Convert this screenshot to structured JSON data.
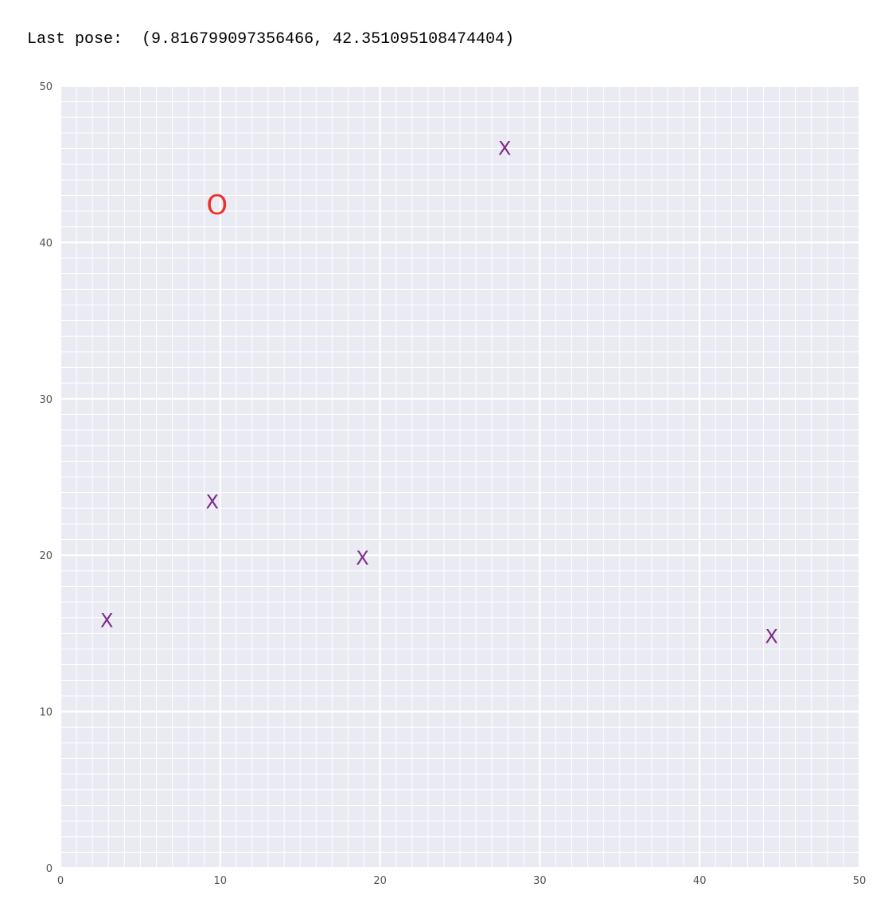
{
  "output": {
    "label": "Last pose:",
    "value": "(9.816799097356466, 42.351095108474404)"
  },
  "chart_data": {
    "type": "scatter",
    "title": "",
    "xlabel": "",
    "ylabel": "",
    "xlim": [
      0,
      50
    ],
    "ylim": [
      0,
      50
    ],
    "xticks": [
      0,
      10,
      20,
      30,
      40,
      50
    ],
    "yticks": [
      0,
      10,
      20,
      30,
      40,
      50
    ],
    "minor_step": 1,
    "grid": true,
    "background_color": "#eaeaf2",
    "grid_color": "#ffffff",
    "series": [
      {
        "marker": "X",
        "color": "#7d2b8b",
        "points": [
          {
            "x": 27.8,
            "y": 46.0
          },
          {
            "x": 9.5,
            "y": 23.4
          },
          {
            "x": 18.9,
            "y": 19.8
          },
          {
            "x": 2.9,
            "y": 15.8
          },
          {
            "x": 44.5,
            "y": 14.8
          }
        ]
      },
      {
        "marker": "O",
        "color": "#e8332a",
        "points": [
          {
            "x": 9.8,
            "y": 42.35
          }
        ]
      }
    ]
  }
}
